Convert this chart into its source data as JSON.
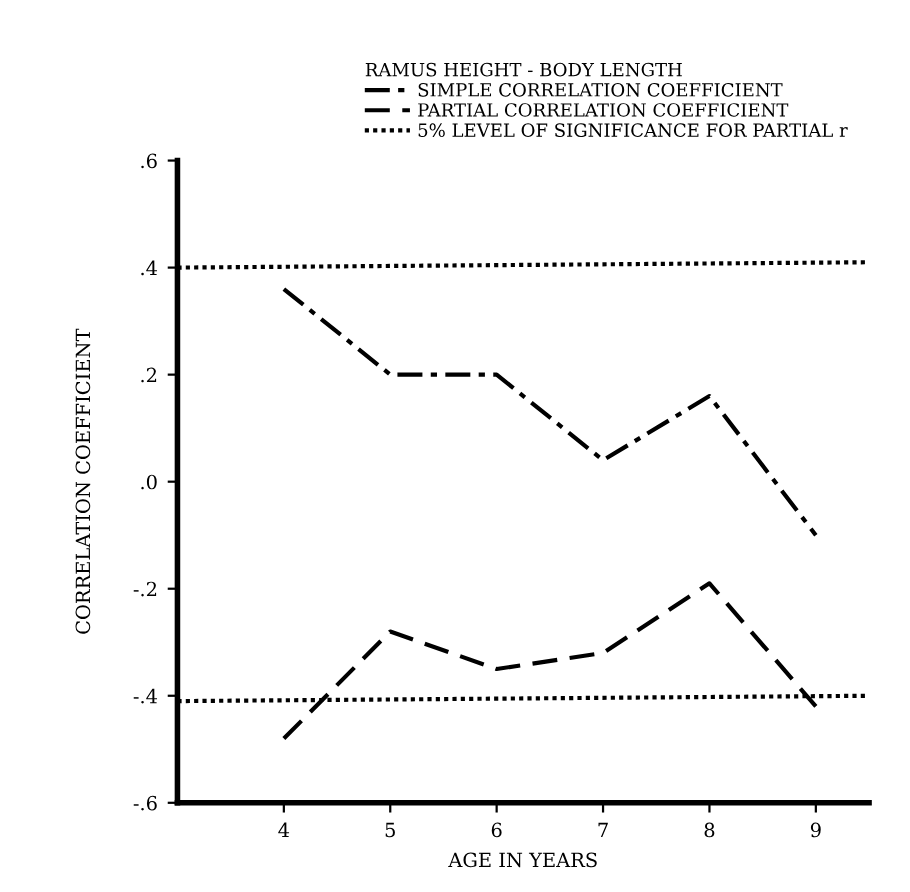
{
  "chart_data": {
    "type": "line",
    "legend_title": "RAMUS HEIGHT - BODY LENGTH",
    "xlabel": "AGE IN YEARS",
    "ylabel": "CORRELATION COEFFICIENT",
    "xlim": [
      3,
      9.5
    ],
    "xticks": [
      4,
      5,
      6,
      7,
      8,
      9
    ],
    "ylim": [
      -0.6,
      0.6
    ],
    "yticks": [
      {
        "value": 0.6,
        "label": ".6"
      },
      {
        "value": 0.4,
        "label": ".4"
      },
      {
        "value": 0.2,
        "label": ".2"
      },
      {
        "value": 0,
        "label": ".0"
      },
      {
        "value": -0.2,
        "label": "-.2"
      },
      {
        "value": -0.4,
        "label": "-.4"
      },
      {
        "value": -0.6,
        "label": "-.6"
      }
    ],
    "legend": "top",
    "grid": false,
    "series": [
      {
        "name": "SIMPLE CORRELATION COEFFICIENT",
        "color": "#000000",
        "line_style": "dashdot",
        "x": [
          4,
          5,
          6,
          7,
          8,
          9
        ],
        "values": [
          0.36,
          0.2,
          0.2,
          0.04,
          0.16,
          -0.1
        ]
      },
      {
        "name": "PARTIAL CORRELATION COEFFICIENT",
        "color": "#000000",
        "line_style": "dashed",
        "x": [
          4,
          5,
          6,
          7,
          8,
          9
        ],
        "values": [
          -0.48,
          -0.28,
          -0.35,
          -0.32,
          -0.19,
          -0.42
        ]
      },
      {
        "name": "5% LEVEL OF SIGNIFICANCE FOR PARTIAL r",
        "color": "#000000",
        "line_style": "dotted",
        "x": [
          3,
          9.5
        ],
        "values": [
          0.4,
          0.41
        ]
      },
      {
        "color": "#000000",
        "line_style": "dotted",
        "x": [
          3,
          9.5
        ],
        "values": [
          -0.41,
          -0.4
        ]
      }
    ]
  }
}
